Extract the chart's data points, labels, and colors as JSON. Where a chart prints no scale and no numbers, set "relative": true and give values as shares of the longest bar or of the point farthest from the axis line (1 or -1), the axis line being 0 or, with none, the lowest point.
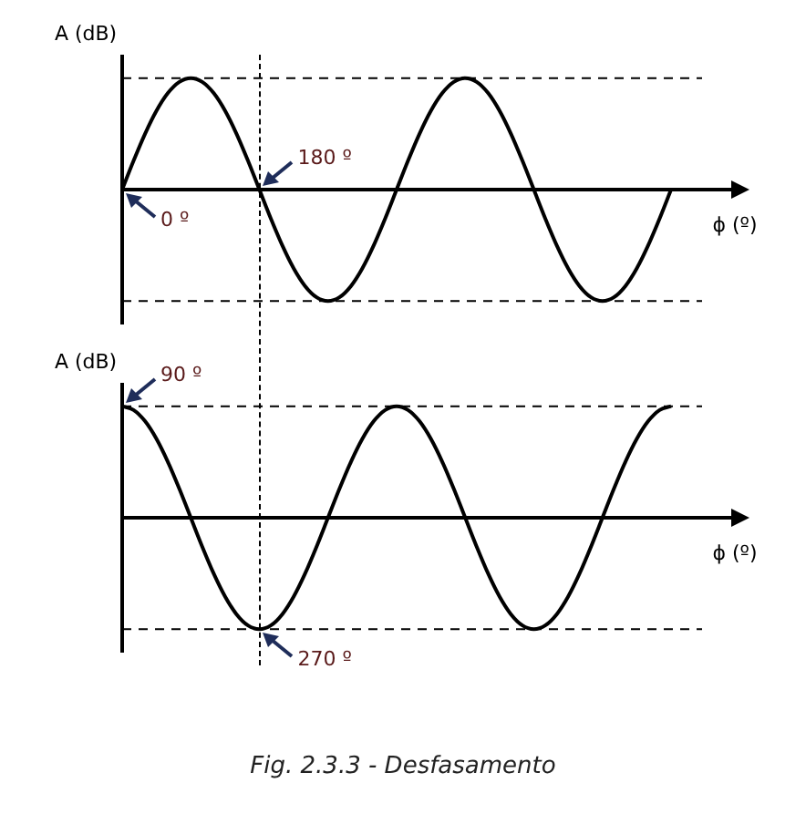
{
  "chart_data": [
    {
      "type": "line",
      "relative": true,
      "ylabel": "A (dB)",
      "xlabel": "ϕ (º)",
      "categories": [
        null,
        null,
        null,
        null,
        null,
        null,
        null,
        null,
        null,
        null,
        null,
        null,
        null,
        null,
        null,
        null,
        null,
        null,
        null,
        null,
        null,
        null,
        null,
        null,
        null,
        null,
        null,
        null,
        null,
        null,
        null,
        null,
        null,
        null,
        null,
        null,
        null,
        null,
        null,
        null,
        null,
        null,
        null,
        null,
        null,
        null,
        null,
        null,
        null
      ],
      "series": [
        {
          "color": "#000000",
          "values": [
            0,
            0.259,
            0.5,
            0.707,
            0.866,
            0.966,
            1,
            0.966,
            0.866,
            0.707,
            0.5,
            0.259,
            0,
            -0.259,
            -0.5,
            -0.707,
            -0.866,
            -0.966,
            -1,
            -0.966,
            -0.866,
            -0.707,
            -0.5,
            -0.259,
            0,
            0.259,
            0.5,
            0.707,
            0.866,
            0.966,
            1,
            0.966,
            0.866,
            0.707,
            0.5,
            0.259,
            0,
            -0.259,
            -0.5,
            -0.707,
            -0.866,
            -0.966,
            -1,
            -0.966,
            -0.866,
            -0.707,
            -0.5,
            -0.259,
            0
          ]
        }
      ],
      "ref_lines": [
        {
          "axis": "y",
          "value": 1,
          "color": "#000000",
          "line_style": "dashed"
        },
        {
          "axis": "y",
          "value": -1,
          "color": "#000000",
          "line_style": "dashed"
        }
      ],
      "annotations": [
        "0 º",
        "180 º"
      ]
    },
    {
      "type": "line",
      "relative": true,
      "ylabel": "A (dB)",
      "xlabel": "ϕ (º)",
      "categories": [
        null,
        null,
        null,
        null,
        null,
        null,
        null,
        null,
        null,
        null,
        null,
        null,
        null,
        null,
        null,
        null,
        null,
        null,
        null,
        null,
        null,
        null,
        null,
        null,
        null,
        null,
        null,
        null,
        null,
        null,
        null,
        null,
        null,
        null,
        null,
        null,
        null,
        null,
        null,
        null,
        null,
        null,
        null,
        null,
        null,
        null,
        null,
        null,
        null
      ],
      "series": [
        {
          "color": "#000000",
          "values": [
            1,
            0.966,
            0.866,
            0.707,
            0.5,
            0.259,
            0,
            -0.259,
            -0.5,
            -0.707,
            -0.866,
            -0.966,
            -1,
            -0.966,
            -0.866,
            -0.707,
            -0.5,
            -0.259,
            0,
            0.259,
            0.5,
            0.707,
            0.866,
            0.966,
            1,
            0.966,
            0.866,
            0.707,
            0.5,
            0.259,
            0,
            -0.259,
            -0.5,
            -0.707,
            -0.866,
            -0.966,
            -1,
            -0.966,
            -0.866,
            -0.707,
            -0.5,
            -0.259,
            0,
            0.259,
            0.5,
            0.707,
            0.866,
            0.966,
            1
          ]
        }
      ],
      "ref_lines": [
        {
          "axis": "y",
          "value": 1,
          "color": "#000000",
          "line_style": "dashed"
        },
        {
          "axis": "y",
          "value": -1,
          "color": "#000000",
          "line_style": "dashed"
        }
      ],
      "annotations": [
        "90 º",
        "270 º",
        "Fig. 2.3.3 - Desfasamento"
      ]
    }
  ]
}
